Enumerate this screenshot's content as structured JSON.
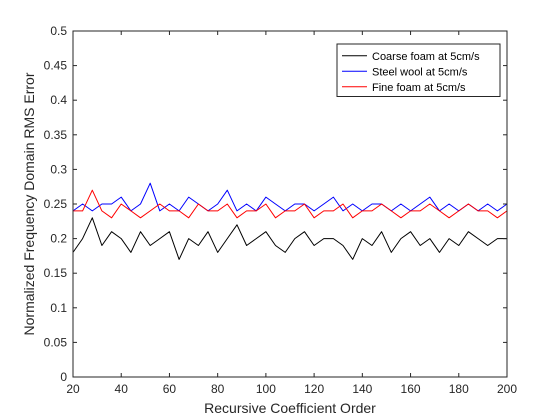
{
  "chart_data": {
    "type": "line",
    "title": "",
    "xlabel": "Recursive Coefficient Order",
    "ylabel": "Normalized Frequency Domain RMS Error",
    "xlim": [
      20,
      200
    ],
    "ylim": [
      0,
      0.5
    ],
    "xticks": [
      "20",
      "40",
      "60",
      "80",
      "100",
      "120",
      "140",
      "160",
      "180",
      "200"
    ],
    "yticks": [
      "0",
      "0.05",
      "0.1",
      "0.15",
      "0.2",
      "0.25",
      "0.3",
      "0.35",
      "0.4",
      "0.45",
      "0.5"
    ],
    "grid": false,
    "legend_position": "top-right",
    "series": [
      {
        "name": "Coarse foam at 5cm/s",
        "color": "#000000",
        "x": [
          20,
          24,
          28,
          32,
          36,
          40,
          44,
          48,
          52,
          56,
          60,
          64,
          68,
          72,
          76,
          80,
          84,
          88,
          92,
          96,
          100,
          104,
          108,
          112,
          116,
          120,
          124,
          128,
          132,
          136,
          140,
          144,
          148,
          152,
          156,
          160,
          164,
          168,
          172,
          176,
          180,
          184,
          188,
          192,
          196,
          200
        ],
        "values": [
          0.18,
          0.2,
          0.23,
          0.19,
          0.21,
          0.2,
          0.18,
          0.21,
          0.19,
          0.2,
          0.21,
          0.17,
          0.2,
          0.19,
          0.21,
          0.18,
          0.2,
          0.22,
          0.19,
          0.2,
          0.21,
          0.19,
          0.18,
          0.2,
          0.21,
          0.19,
          0.2,
          0.2,
          0.19,
          0.17,
          0.2,
          0.19,
          0.21,
          0.18,
          0.2,
          0.21,
          0.19,
          0.2,
          0.18,
          0.2,
          0.19,
          0.21,
          0.2,
          0.19,
          0.2,
          0.2
        ]
      },
      {
        "name": "Steel wool at 5cm/s",
        "color": "#0000ff",
        "x": [
          20,
          24,
          28,
          32,
          36,
          40,
          44,
          48,
          52,
          56,
          60,
          64,
          68,
          72,
          76,
          80,
          84,
          88,
          92,
          96,
          100,
          104,
          108,
          112,
          116,
          120,
          124,
          128,
          132,
          136,
          140,
          144,
          148,
          152,
          156,
          160,
          164,
          168,
          172,
          176,
          180,
          184,
          188,
          192,
          196,
          200
        ],
        "values": [
          0.24,
          0.25,
          0.24,
          0.25,
          0.25,
          0.26,
          0.24,
          0.25,
          0.28,
          0.24,
          0.25,
          0.24,
          0.26,
          0.25,
          0.24,
          0.25,
          0.27,
          0.24,
          0.25,
          0.24,
          0.26,
          0.25,
          0.24,
          0.25,
          0.25,
          0.24,
          0.25,
          0.26,
          0.24,
          0.25,
          0.24,
          0.25,
          0.25,
          0.24,
          0.25,
          0.24,
          0.25,
          0.26,
          0.24,
          0.25,
          0.24,
          0.25,
          0.24,
          0.25,
          0.24,
          0.25
        ]
      },
      {
        "name": "Fine foam at 5cm/s",
        "color": "#ff0000",
        "x": [
          20,
          24,
          28,
          32,
          36,
          40,
          44,
          48,
          52,
          56,
          60,
          64,
          68,
          72,
          76,
          80,
          84,
          88,
          92,
          96,
          100,
          104,
          108,
          112,
          116,
          120,
          124,
          128,
          132,
          136,
          140,
          144,
          148,
          152,
          156,
          160,
          164,
          168,
          172,
          176,
          180,
          184,
          188,
          192,
          196,
          200
        ],
        "values": [
          0.24,
          0.24,
          0.27,
          0.24,
          0.23,
          0.25,
          0.24,
          0.23,
          0.24,
          0.25,
          0.24,
          0.24,
          0.23,
          0.25,
          0.24,
          0.24,
          0.25,
          0.23,
          0.24,
          0.24,
          0.25,
          0.23,
          0.24,
          0.24,
          0.25,
          0.23,
          0.24,
          0.24,
          0.25,
          0.23,
          0.24,
          0.24,
          0.25,
          0.24,
          0.23,
          0.24,
          0.24,
          0.25,
          0.24,
          0.23,
          0.24,
          0.25,
          0.24,
          0.24,
          0.23,
          0.24
        ]
      }
    ]
  }
}
